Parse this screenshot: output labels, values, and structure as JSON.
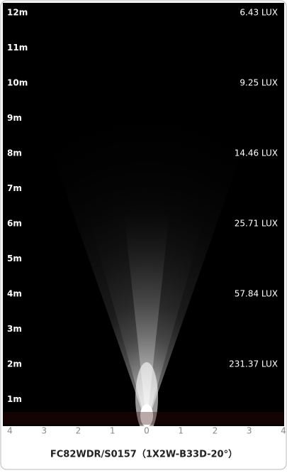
{
  "chart_data": {
    "type": "beam",
    "title": "FC82WDR/S0157（1X2W-B33D-20°）",
    "yticks": [
      {
        "value": 1,
        "label": "1m"
      },
      {
        "value": 2,
        "label": "2m"
      },
      {
        "value": 3,
        "label": "3m"
      },
      {
        "value": 4,
        "label": "4m"
      },
      {
        "value": 5,
        "label": "5m"
      },
      {
        "value": 6,
        "label": "6m"
      },
      {
        "value": 7,
        "label": "7m"
      },
      {
        "value": 8,
        "label": "8m"
      },
      {
        "value": 9,
        "label": "9m"
      },
      {
        "value": 10,
        "label": "10m"
      },
      {
        "value": 11,
        "label": "11m"
      },
      {
        "value": 12,
        "label": "12m"
      }
    ],
    "ylim": [
      0,
      12
    ],
    "xticks": [
      {
        "value": -4,
        "label": "4"
      },
      {
        "value": -3,
        "label": "3"
      },
      {
        "value": -2,
        "label": "2"
      },
      {
        "value": -1,
        "label": "1"
      },
      0,
      1,
      2,
      3,
      4
    ],
    "xlim": [
      -4,
      4
    ],
    "illuminance": {
      "distances": [
        2,
        4,
        6,
        8,
        10,
        12
      ],
      "values": [
        231.37,
        57.84,
        25.71,
        14.46,
        9.25,
        6.43
      ],
      "value_labels": [
        "231.37 LUX",
        "57.84 LUX",
        "25.71 LUX",
        "14.46 LUX",
        "9.25 LUX",
        "6.43 LUX"
      ]
    }
  }
}
